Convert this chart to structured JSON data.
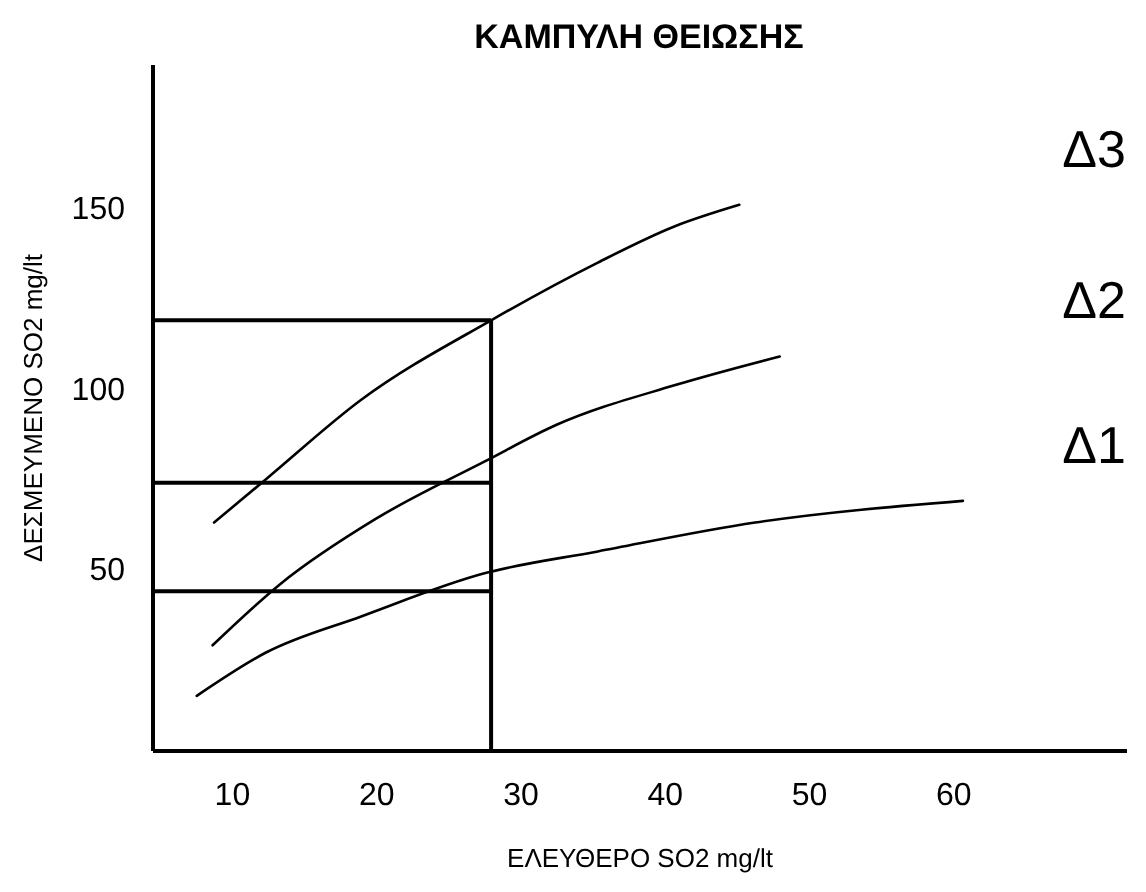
{
  "chart_data": {
    "type": "line",
    "title": "ΚΑΜΠΥΛΗ ΘΕΙΩΣΗΣ",
    "xlabel": "ΕΛΕΥΘΕΡΟ SO2 mg/lt",
    "ylabel": "ΔΕΣΜΕΥΜΕΝΟ SO2 mg/lt",
    "xlim": [
      4.5,
      72
    ],
    "xticks": [
      10,
      20,
      30,
      40,
      50,
      60
    ],
    "ylim": [
      0,
      190
    ],
    "yticks": [
      50,
      100,
      150
    ],
    "grid": false,
    "legend": false,
    "marker": "none",
    "line_style": "solid",
    "series": [
      {
        "name": "Δ3",
        "color": "#000000",
        "x": [
          8.8,
          12.4,
          19,
          28,
          35.4,
          40.7,
          45.2
        ],
        "values": [
          63,
          75,
          97,
          119,
          135,
          145,
          151
        ]
      },
      {
        "name": "Δ2",
        "color": "#000000",
        "x": [
          8.7,
          13.4,
          20,
          27.6,
          32.5,
          40.7,
          48
        ],
        "values": [
          29,
          46,
          64,
          80,
          90,
          101,
          109
        ]
      },
      {
        "name": "Δ1",
        "color": "#000000",
        "x": [
          7.6,
          12.4,
          19,
          27.6,
          35.4,
          46.3,
          60.7
        ],
        "values": [
          15,
          27,
          37,
          49,
          55,
          63,
          69
        ]
      }
    ],
    "ref_lines": [
      {
        "axis": "x",
        "value": 28,
        "color": "#000000"
      },
      {
        "axis": "y",
        "value": 119,
        "color": "#000000"
      },
      {
        "axis": "y",
        "value": 74,
        "color": "#000000"
      },
      {
        "axis": "y",
        "value": 44,
        "color": "#000000"
      }
    ]
  }
}
